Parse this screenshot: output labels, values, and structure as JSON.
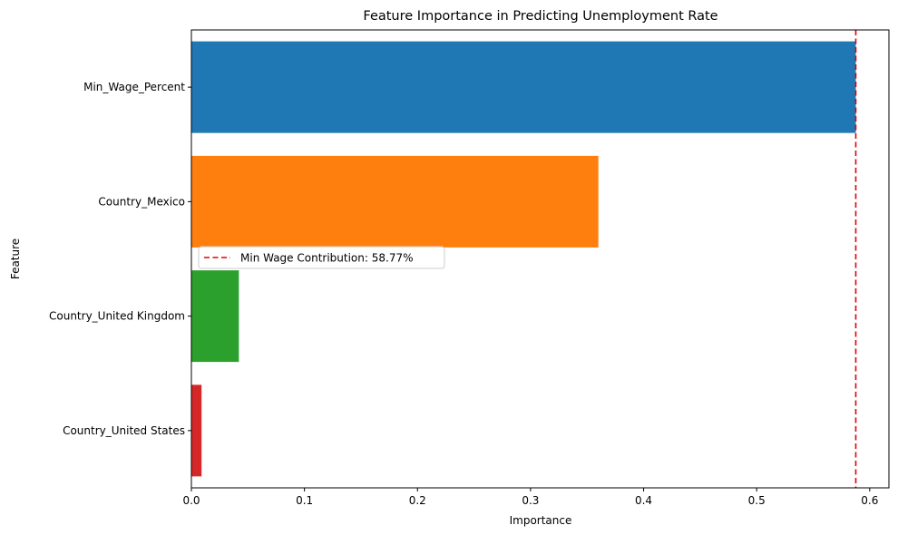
{
  "chart_data": {
    "type": "bar",
    "orientation": "horizontal",
    "title": "Feature Importance in Predicting Unemployment Rate",
    "xlabel": "Importance",
    "ylabel": "Feature",
    "xlim": [
      0,
      0.617
    ],
    "xticks": [
      0,
      0.1,
      0.2,
      0.3,
      0.4,
      0.5,
      0.6
    ],
    "xtick_labels": [
      "0.0",
      "0.1",
      "0.2",
      "0.3",
      "0.4",
      "0.5",
      "0.6"
    ],
    "categories": [
      "Min_Wage_Percent",
      "Country_Mexico",
      "Country_United Kingdom",
      "Country_United States"
    ],
    "values": [
      0.5877,
      0.36,
      0.042,
      0.009
    ],
    "colors": [
      "#1f77b4",
      "#ff7f0e",
      "#2ca02c",
      "#d62728"
    ],
    "reference_line": {
      "x": 0.5877,
      "color": "#e00000",
      "style": "dashed",
      "label": "Min Wage Contribution: 58.77%"
    },
    "legend": {
      "placement": "center-left"
    },
    "grid": false
  }
}
